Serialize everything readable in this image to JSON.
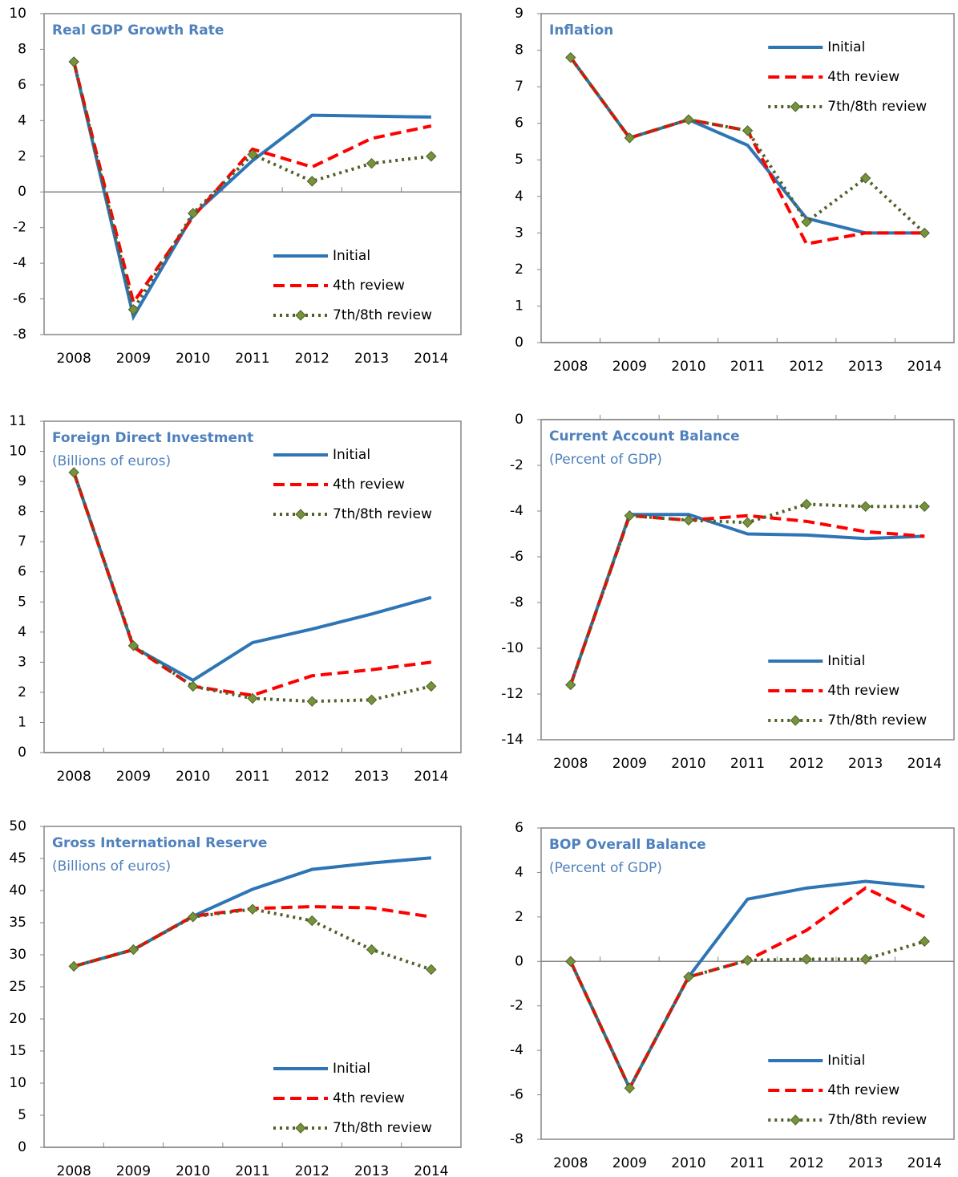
{
  "chart_data": [
    {
      "type": "line",
      "title": "Real GDP Growth Rate",
      "legend": "lower right",
      "categories": [
        "2008",
        "2009",
        "2010",
        "2011",
        "2012",
        "2013",
        "2014"
      ],
      "ylim": [
        -8,
        10
      ],
      "yticks": [
        -8,
        -6,
        -4,
        -2,
        0,
        2,
        4,
        6,
        8,
        10
      ],
      "series": [
        {
          "name": "Initial",
          "color": "#2e75b6",
          "style": "solid",
          "values": [
            7.3,
            -7.0,
            -1.3,
            1.75,
            4.3,
            4.25,
            4.2
          ]
        },
        {
          "name": "4th review",
          "color": "#ff0000",
          "style": "dashed",
          "values": [
            7.3,
            -6.2,
            -1.4,
            2.4,
            1.4,
            3.0,
            3.7
          ]
        },
        {
          "name": "7th/8th review",
          "color": "#4f6228",
          "style": "dotted",
          "marker": "#76923c",
          "values": [
            7.3,
            -6.6,
            -1.2,
            2.1,
            0.6,
            1.6,
            2.0
          ]
        }
      ]
    },
    {
      "type": "line",
      "title": "Inflation",
      "legend": "upper right",
      "categories": [
        "2008",
        "2009",
        "2010",
        "2011",
        "2012",
        "2013",
        "2014"
      ],
      "ylim": [
        0,
        9
      ],
      "yticks": [
        0,
        1,
        2,
        3,
        4,
        5,
        6,
        7,
        8,
        9
      ],
      "series": [
        {
          "name": "Initial",
          "color": "#2e75b6",
          "style": "solid",
          "values": [
            7.8,
            5.6,
            6.1,
            5.4,
            3.4,
            3.0,
            3.0
          ]
        },
        {
          "name": "4th review",
          "color": "#ff0000",
          "style": "dashed",
          "values": [
            7.8,
            5.6,
            6.1,
            5.8,
            2.7,
            3.0,
            3.0
          ]
        },
        {
          "name": "7th/8th review",
          "color": "#4f6228",
          "style": "dotted",
          "marker": "#76923c",
          "values": [
            7.8,
            5.6,
            6.1,
            5.8,
            3.3,
            4.5,
            3.0
          ]
        }
      ]
    },
    {
      "type": "line",
      "title": "Foreign Direct Investment",
      "subtitle": "(Billions of euros)",
      "legend": "upper right",
      "categories": [
        "2008",
        "2009",
        "2010",
        "2011",
        "2012",
        "2013",
        "2014"
      ],
      "ylim": [
        0,
        11
      ],
      "yticks": [
        0,
        1,
        2,
        3,
        4,
        5,
        6,
        7,
        8,
        9,
        10,
        11
      ],
      "series": [
        {
          "name": "Initial",
          "color": "#2e75b6",
          "style": "solid",
          "values": [
            9.3,
            3.5,
            2.4,
            3.65,
            4.1,
            4.6,
            5.15
          ]
        },
        {
          "name": "4th review",
          "color": "#ff0000",
          "style": "dashed",
          "values": [
            9.3,
            3.5,
            2.2,
            1.9,
            2.55,
            2.75,
            3.0
          ]
        },
        {
          "name": "7th/8th review",
          "color": "#4f6228",
          "style": "dotted",
          "marker": "#76923c",
          "values": [
            9.3,
            3.55,
            2.2,
            1.8,
            1.7,
            1.75,
            2.2
          ]
        }
      ]
    },
    {
      "type": "line",
      "title": "Current Account Balance",
      "subtitle": "(Percent of GDP)",
      "legend": "lower right",
      "categories": [
        "2008",
        "2009",
        "2010",
        "2011",
        "2012",
        "2013",
        "2014"
      ],
      "ylim": [
        -14,
        0
      ],
      "yticks": [
        -14,
        -12,
        -10,
        -8,
        -6,
        -4,
        -2,
        0
      ],
      "series": [
        {
          "name": "Initial",
          "color": "#2e75b6",
          "style": "solid",
          "values": [
            -11.6,
            -4.15,
            -4.15,
            -5.0,
            -5.05,
            -5.2,
            -5.1
          ]
        },
        {
          "name": "4th review",
          "color": "#ff0000",
          "style": "dashed",
          "values": [
            -11.6,
            -4.2,
            -4.4,
            -4.2,
            -4.45,
            -4.9,
            -5.1
          ]
        },
        {
          "name": "7th/8th review",
          "color": "#4f6228",
          "style": "dotted",
          "marker": "#76923c",
          "values": [
            -11.6,
            -4.2,
            -4.4,
            -4.5,
            -3.7,
            -3.8,
            -3.8
          ]
        }
      ]
    },
    {
      "type": "line",
      "title": "Gross International Reserve",
      "subtitle": "(Billions of euros)",
      "legend": "lower right",
      "categories": [
        "2008",
        "2009",
        "2010",
        "2011",
        "2012",
        "2013",
        "2014"
      ],
      "ylim": [
        0,
        50
      ],
      "yticks": [
        0,
        5,
        10,
        15,
        20,
        25,
        30,
        35,
        40,
        45,
        50
      ],
      "series": [
        {
          "name": "Initial",
          "color": "#2e75b6",
          "style": "solid",
          "values": [
            28.2,
            30.8,
            36.0,
            40.2,
            43.3,
            44.3,
            45.1
          ]
        },
        {
          "name": "4th review",
          "color": "#ff0000",
          "style": "dashed",
          "values": [
            28.2,
            30.8,
            36.0,
            37.2,
            37.5,
            37.3,
            35.9
          ]
        },
        {
          "name": "7th/8th review",
          "color": "#4f6228",
          "style": "dotted",
          "marker": "#76923c",
          "values": [
            28.2,
            30.8,
            35.9,
            37.1,
            35.3,
            30.8,
            27.7
          ]
        }
      ]
    },
    {
      "type": "line",
      "title": "BOP Overall Balance",
      "subtitle": "(Percent of GDP)",
      "legend": "lower right",
      "categories": [
        "2008",
        "2009",
        "2010",
        "2011",
        "2012",
        "2013",
        "2014"
      ],
      "ylim": [
        -8,
        6
      ],
      "yticks": [
        -8,
        -6,
        -4,
        -2,
        0,
        2,
        4,
        6
      ],
      "series": [
        {
          "name": "Initial",
          "color": "#2e75b6",
          "style": "solid",
          "values": [
            0,
            -5.7,
            -0.7,
            2.8,
            3.3,
            3.6,
            3.35
          ]
        },
        {
          "name": "4th review",
          "color": "#ff0000",
          "style": "dashed",
          "values": [
            0,
            -5.7,
            -0.7,
            0.05,
            1.4,
            3.3,
            2.0
          ]
        },
        {
          "name": "7th/8th review",
          "color": "#4f6228",
          "style": "dotted",
          "marker": "#76923c",
          "values": [
            0,
            -5.7,
            -0.7,
            0.05,
            0.1,
            0.1,
            0.9
          ]
        }
      ]
    }
  ]
}
